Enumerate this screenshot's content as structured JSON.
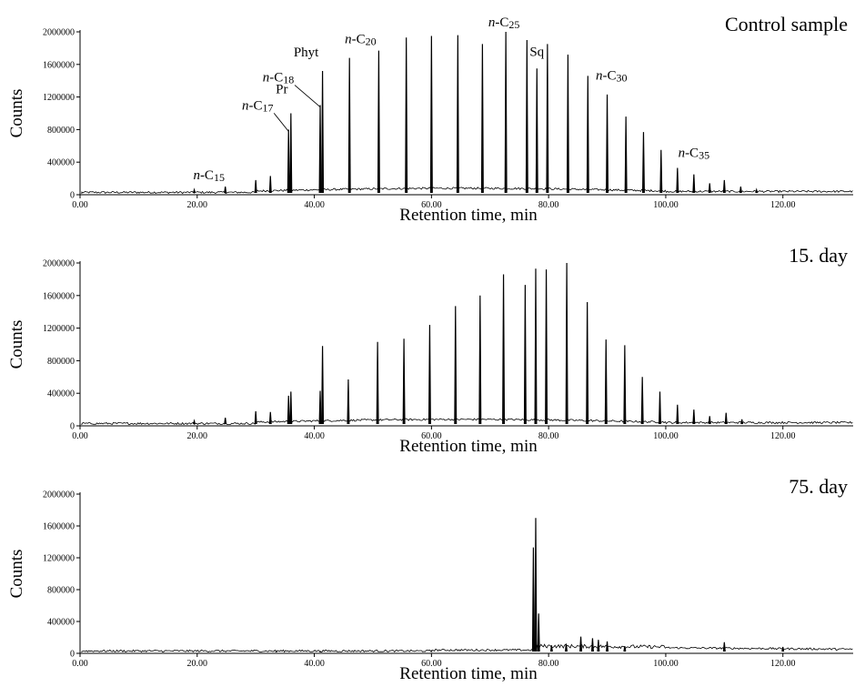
{
  "chart_data": [
    {
      "type": "line",
      "title": "Control sample",
      "xlabel": "Retention time, min",
      "ylabel": "Counts",
      "xlim": [
        0,
        132
      ],
      "ylim": [
        0,
        2000000
      ],
      "xticks": [
        "0.00",
        "20.00",
        "40.00",
        "60.00",
        "80.00",
        "100.00",
        "120.00"
      ],
      "xtick_values": [
        0,
        20,
        40,
        60,
        80,
        100,
        120
      ],
      "yticks": [
        "0",
        "400000",
        "800000",
        "1200000",
        "1600000",
        "2000000"
      ],
      "ytick_values": [
        0,
        400000,
        800000,
        1200000,
        1600000,
        2000000
      ],
      "peaks": [
        {
          "x": 19.5,
          "y": 60000
        },
        {
          "x": 24.8,
          "y": 100000
        },
        {
          "x": 30.0,
          "y": 180000
        },
        {
          "x": 32.5,
          "y": 230000
        },
        {
          "x": 35.6,
          "y": 800000
        },
        {
          "x": 36.0,
          "y": 1000000
        },
        {
          "x": 41.0,
          "y": 1100000
        },
        {
          "x": 41.4,
          "y": 1520000
        },
        {
          "x": 46.0,
          "y": 1680000
        },
        {
          "x": 51.0,
          "y": 1770000
        },
        {
          "x": 55.7,
          "y": 1930000
        },
        {
          "x": 60.0,
          "y": 1950000
        },
        {
          "x": 64.5,
          "y": 1960000
        },
        {
          "x": 68.7,
          "y": 1850000
        },
        {
          "x": 72.7,
          "y": 2000000
        },
        {
          "x": 76.3,
          "y": 1900000
        },
        {
          "x": 78.0,
          "y": 1550000
        },
        {
          "x": 79.8,
          "y": 1850000
        },
        {
          "x": 83.3,
          "y": 1720000
        },
        {
          "x": 86.7,
          "y": 1460000
        },
        {
          "x": 90.0,
          "y": 1230000
        },
        {
          "x": 93.2,
          "y": 960000
        },
        {
          "x": 96.2,
          "y": 770000
        },
        {
          "x": 99.2,
          "y": 550000
        },
        {
          "x": 102.0,
          "y": 330000
        },
        {
          "x": 104.8,
          "y": 250000
        },
        {
          "x": 107.5,
          "y": 140000
        },
        {
          "x": 110.0,
          "y": 180000
        },
        {
          "x": 112.8,
          "y": 100000
        },
        {
          "x": 115.5,
          "y": 60000
        }
      ],
      "annotations": [
        {
          "prefix": "n",
          "base": "-C",
          "sub": "15",
          "x": 24.8,
          "y": 100000
        },
        {
          "prefix": "n",
          "base": "-C",
          "sub": "17",
          "x": 35.6,
          "y": 800000
        },
        {
          "prefix": "",
          "base": "Pr",
          "sub": "",
          "x": 36.0,
          "y": 1000000
        },
        {
          "prefix": "n",
          "base": "-C",
          "sub": "18",
          "x": 41.0,
          "y": 1100000
        },
        {
          "prefix": "",
          "base": "Phyt",
          "sub": "",
          "x": 41.4,
          "y": 1520000
        },
        {
          "prefix": "n",
          "base": "-C",
          "sub": "20",
          "x": 51.0,
          "y": 1770000
        },
        {
          "prefix": "n",
          "base": "-C",
          "sub": "25",
          "x": 72.7,
          "y": 2000000
        },
        {
          "prefix": "",
          "base": "Sq",
          "sub": "",
          "x": 78.0,
          "y": 1550000
        },
        {
          "prefix": "n",
          "base": "-C",
          "sub": "30",
          "x": 86.7,
          "y": 1460000
        },
        {
          "prefix": "n",
          "base": "-C",
          "sub": "35",
          "x": 102.0,
          "y": 330000
        }
      ]
    },
    {
      "type": "line",
      "title": "15. day",
      "xlabel": "Retention time, min",
      "ylabel": "Counts",
      "xlim": [
        0,
        132
      ],
      "ylim": [
        0,
        2000000
      ],
      "xticks": [
        "0.00",
        "20.00",
        "40.00",
        "60.00",
        "80.00",
        "100.00",
        "120.00"
      ],
      "xtick_values": [
        0,
        20,
        40,
        60,
        80,
        100,
        120
      ],
      "yticks": [
        "0",
        "400000",
        "800000",
        "1200000",
        "1600000",
        "2000000"
      ],
      "ytick_values": [
        0,
        400000,
        800000,
        1200000,
        1600000,
        2000000
      ],
      "peaks": [
        {
          "x": 19.5,
          "y": 60000
        },
        {
          "x": 24.8,
          "y": 100000
        },
        {
          "x": 30.0,
          "y": 180000
        },
        {
          "x": 32.5,
          "y": 170000
        },
        {
          "x": 35.6,
          "y": 370000
        },
        {
          "x": 36.0,
          "y": 420000
        },
        {
          "x": 41.0,
          "y": 430000
        },
        {
          "x": 41.4,
          "y": 980000
        },
        {
          "x": 45.8,
          "y": 570000
        },
        {
          "x": 50.8,
          "y": 1030000
        },
        {
          "x": 55.3,
          "y": 1070000
        },
        {
          "x": 59.7,
          "y": 1240000
        },
        {
          "x": 64.1,
          "y": 1470000
        },
        {
          "x": 68.3,
          "y": 1600000
        },
        {
          "x": 72.3,
          "y": 1860000
        },
        {
          "x": 76.0,
          "y": 1730000
        },
        {
          "x": 77.8,
          "y": 1930000
        },
        {
          "x": 79.6,
          "y": 1920000
        },
        {
          "x": 83.1,
          "y": 2000000
        },
        {
          "x": 86.6,
          "y": 1520000
        },
        {
          "x": 89.8,
          "y": 1060000
        },
        {
          "x": 93.0,
          "y": 990000
        },
        {
          "x": 96.0,
          "y": 600000
        },
        {
          "x": 99.0,
          "y": 420000
        },
        {
          "x": 102.0,
          "y": 260000
        },
        {
          "x": 104.8,
          "y": 200000
        },
        {
          "x": 107.5,
          "y": 120000
        },
        {
          "x": 110.3,
          "y": 160000
        },
        {
          "x": 113.0,
          "y": 80000
        }
      ]
    },
    {
      "type": "line",
      "title": "75. day",
      "xlabel": "Retention time, min",
      "ylabel": "Counts",
      "xlim": [
        0,
        132
      ],
      "ylim": [
        0,
        2000000
      ],
      "xticks": [
        "0.00",
        "20.00",
        "40.00",
        "60.00",
        "80.00",
        "100.00",
        "120.00"
      ],
      "xtick_values": [
        0,
        20,
        40,
        60,
        80,
        100,
        120
      ],
      "yticks": [
        "0",
        "400000",
        "800000",
        "1200000",
        "1600000",
        "2000000"
      ],
      "ytick_values": [
        0,
        400000,
        800000,
        1200000,
        1600000,
        2000000
      ],
      "peaks": [
        {
          "x": 33.5,
          "y": 20000
        },
        {
          "x": 41.0,
          "y": 20000
        },
        {
          "x": 60.0,
          "y": 25000
        },
        {
          "x": 77.4,
          "y": 1330000
        },
        {
          "x": 77.8,
          "y": 1700000
        },
        {
          "x": 78.3,
          "y": 500000
        },
        {
          "x": 80.5,
          "y": 100000
        },
        {
          "x": 83.0,
          "y": 120000
        },
        {
          "x": 85.5,
          "y": 210000
        },
        {
          "x": 87.5,
          "y": 190000
        },
        {
          "x": 88.5,
          "y": 170000
        },
        {
          "x": 90.0,
          "y": 150000
        },
        {
          "x": 93.0,
          "y": 90000
        },
        {
          "x": 110.0,
          "y": 140000
        },
        {
          "x": 120.0,
          "y": 80000
        }
      ]
    }
  ]
}
